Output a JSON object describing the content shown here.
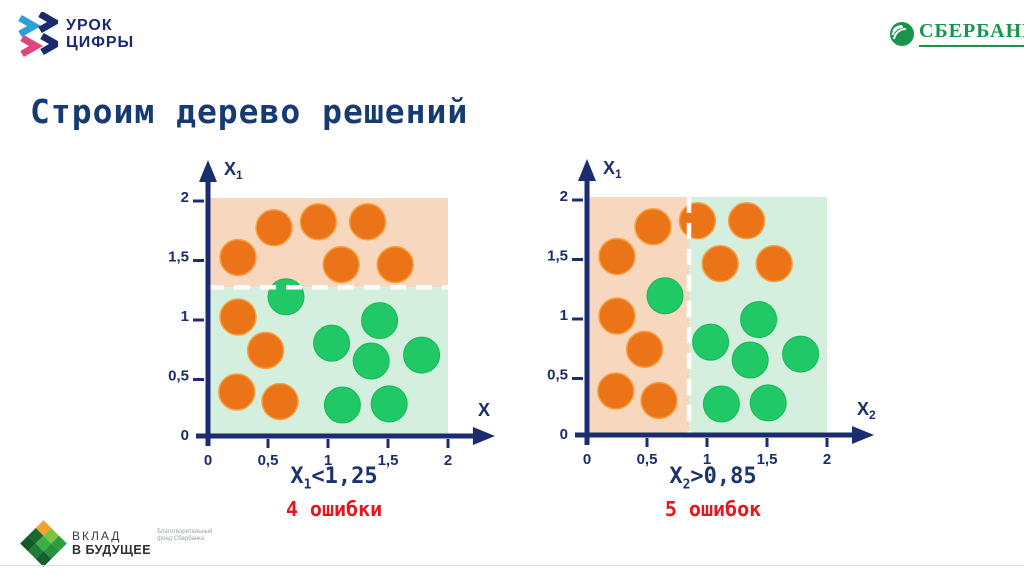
{
  "header": {
    "urok_logo": {
      "line1": "УРОК",
      "line2": "ЦИФРЫ"
    },
    "sberbank": {
      "name": "СБЕРБАНК"
    }
  },
  "title": {
    "text": "Строим дерево решений"
  },
  "footer": {
    "vklad": {
      "line1": "ВКЛАД",
      "line2": "В БУДУЩЕЕ",
      "sub_line1": "Благотворительный",
      "sub_line2": "фонд Сбербанка"
    }
  },
  "colors": {
    "navy": "#1c2d6f",
    "red": "#e8141e",
    "peach_region": "#f8d7bf",
    "green_region": "#d5efdf",
    "orange_fill": "#ec7418",
    "orange_stroke": "#f5a342",
    "green_fill": "#21c966",
    "green_stroke": "#14b85a",
    "dash": "#ffffff",
    "sber_green": "#18954a",
    "logo_blue": "#2f9fd8",
    "logo_pink": "#e0447c"
  },
  "chart_data": [
    {
      "type": "scatter",
      "id": "left",
      "ylabel": {
        "main": "X",
        "sub": "1"
      },
      "xlabel": {
        "main": "X",
        "sub": ""
      },
      "xlim": [
        0,
        2
      ],
      "ylim": [
        0,
        2
      ],
      "ticks": {
        "values": [
          0,
          0.5,
          1,
          1.5,
          2
        ],
        "labels": [
          "0",
          "0,5",
          "1",
          "1,5",
          "2"
        ]
      },
      "split": {
        "axis": "y",
        "value": 1.25
      },
      "regions": {
        "a": "#f8d7bf",
        "b": "#d5efdf"
      },
      "points": {
        "orange": [
          [
            0.25,
            1.5
          ],
          [
            0.55,
            1.75
          ],
          [
            0.92,
            1.8
          ],
          [
            1.33,
            1.8
          ],
          [
            1.11,
            1.44
          ],
          [
            1.56,
            1.44
          ],
          [
            0.25,
            1.0
          ],
          [
            0.48,
            0.72
          ],
          [
            0.24,
            0.37
          ],
          [
            0.6,
            0.29
          ]
        ],
        "green": [
          [
            0.65,
            1.17
          ],
          [
            1.03,
            0.78
          ],
          [
            1.43,
            0.97
          ],
          [
            1.36,
            0.63
          ],
          [
            1.78,
            0.68
          ],
          [
            1.12,
            0.26
          ],
          [
            1.51,
            0.27
          ]
        ]
      },
      "rule": {
        "main": "X",
        "sub": "1",
        "cond": "<1,25"
      },
      "errors": "4 ошибки"
    },
    {
      "type": "scatter",
      "id": "right",
      "ylabel": {
        "main": "X",
        "sub": "1"
      },
      "xlabel": {
        "main": "X",
        "sub": "2"
      },
      "xlim": [
        0,
        2
      ],
      "ylim": [
        0,
        2
      ],
      "ticks": {
        "values": [
          0,
          0.5,
          1,
          1.5,
          2
        ],
        "labels": [
          "0",
          "0,5",
          "1",
          "1,5",
          "2"
        ]
      },
      "split": {
        "axis": "x",
        "value": 0.85
      },
      "regions": {
        "a": "#f8d7bf",
        "b": "#d5efdf"
      },
      "points": {
        "orange": [
          [
            0.25,
            1.5
          ],
          [
            0.55,
            1.75
          ],
          [
            0.92,
            1.8
          ],
          [
            1.33,
            1.8
          ],
          [
            1.11,
            1.44
          ],
          [
            1.56,
            1.44
          ],
          [
            0.25,
            1.0
          ],
          [
            0.48,
            0.72
          ],
          [
            0.24,
            0.37
          ],
          [
            0.6,
            0.29
          ]
        ],
        "green": [
          [
            0.65,
            1.17
          ],
          [
            1.03,
            0.78
          ],
          [
            1.43,
            0.97
          ],
          [
            1.36,
            0.63
          ],
          [
            1.78,
            0.68
          ],
          [
            1.12,
            0.26
          ],
          [
            1.51,
            0.27
          ]
        ]
      },
      "rule": {
        "main": "X",
        "sub": "2",
        "cond": ">0,85"
      },
      "errors": "5 ошибок"
    }
  ]
}
